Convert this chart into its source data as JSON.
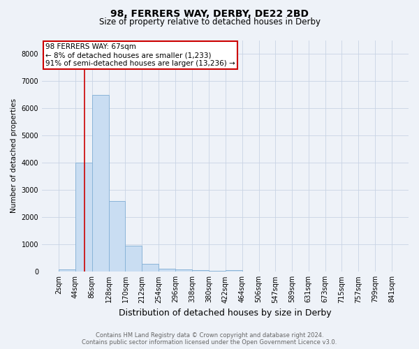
{
  "title": "98, FERRERS WAY, DERBY, DE22 2BD",
  "subtitle": "Size of property relative to detached houses in Derby",
  "xlabel": "Distribution of detached houses by size in Derby",
  "ylabel": "Number of detached properties",
  "footer_line1": "Contains HM Land Registry data © Crown copyright and database right 2024.",
  "footer_line2": "Contains public sector information licensed under the Open Government Licence v3.0.",
  "annotation_line1": "98 FERRERS WAY: 67sqm",
  "annotation_line2": "← 8% of detached houses are smaller (1,233)",
  "annotation_line3": "91% of semi-detached houses are larger (13,236) →",
  "bin_edges": [
    2,
    44,
    86,
    128,
    170,
    212,
    254,
    296,
    338,
    380,
    422,
    464,
    506,
    547,
    589,
    631,
    673,
    715,
    757,
    799,
    841
  ],
  "bin_counts": [
    80,
    4000,
    6500,
    2600,
    950,
    300,
    120,
    80,
    60,
    30,
    60,
    0,
    0,
    0,
    0,
    0,
    0,
    0,
    0,
    0
  ],
  "bar_color": "#c9ddf2",
  "bar_edge_color": "#8ab4d8",
  "vline_color": "#cc0000",
  "vline_x": 67,
  "annotation_box_edge_color": "#cc0000",
  "annotation_box_fill": "#ffffff",
  "grid_color": "#c8d4e4",
  "background_color": "#eef2f8",
  "ylim": [
    0,
    8500
  ],
  "yticks": [
    0,
    1000,
    2000,
    3000,
    4000,
    5000,
    6000,
    7000,
    8000
  ],
  "title_fontsize": 10,
  "subtitle_fontsize": 8.5,
  "xlabel_fontsize": 9,
  "ylabel_fontsize": 7.5,
  "tick_fontsize": 7,
  "footer_fontsize": 6,
  "annotation_fontsize": 7.5
}
